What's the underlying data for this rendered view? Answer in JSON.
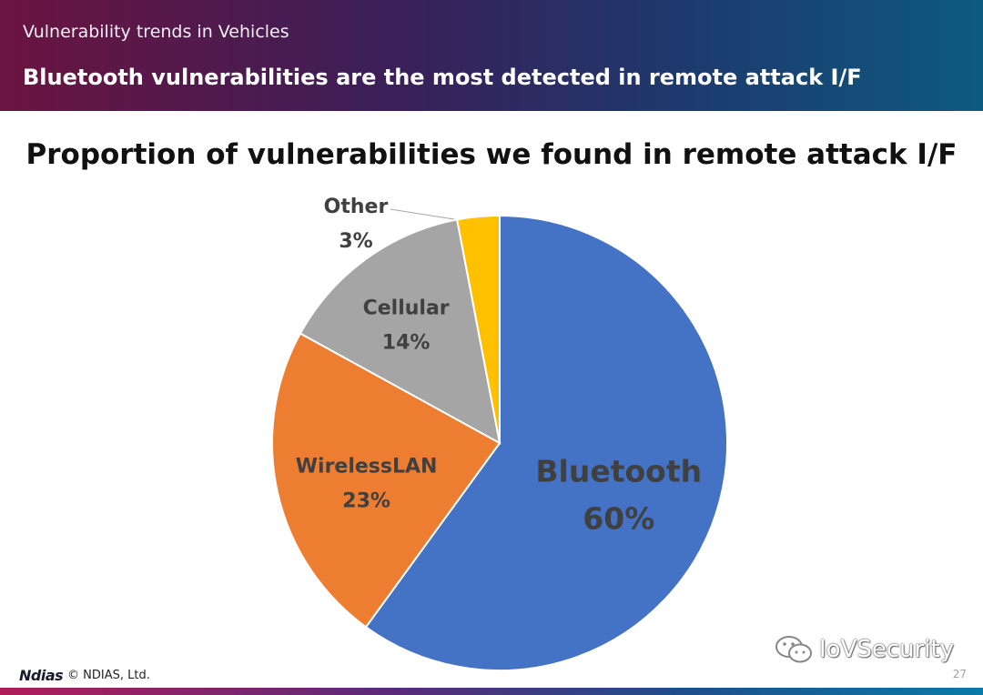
{
  "header": {
    "subtitle": "Vulnerability trends in Vehicles",
    "title": "Bluetooth vulnerabilities are the most detected in remote attack I/F"
  },
  "chart_data": {
    "type": "pie",
    "title": "Proportion of vulnerabilities we found in remote attack I/F",
    "slices": [
      {
        "label": "Bluetooth",
        "value": 60,
        "display": "60%",
        "color": "#4472c4"
      },
      {
        "label": "WirelessLAN",
        "value": 23,
        "display": "23%",
        "color": "#ed7d31"
      },
      {
        "label": "Cellular",
        "value": 14,
        "display": "14%",
        "color": "#a5a5a5"
      },
      {
        "label": "Other",
        "value": 3,
        "display": "3%",
        "color": "#ffc000"
      }
    ]
  },
  "footer": {
    "logo": "Ndias",
    "copyright": "© NDIAS, Ltd.",
    "page_number": "27"
  },
  "watermark": {
    "text": "IoVSecurity",
    "icon": "wechat-icon"
  }
}
